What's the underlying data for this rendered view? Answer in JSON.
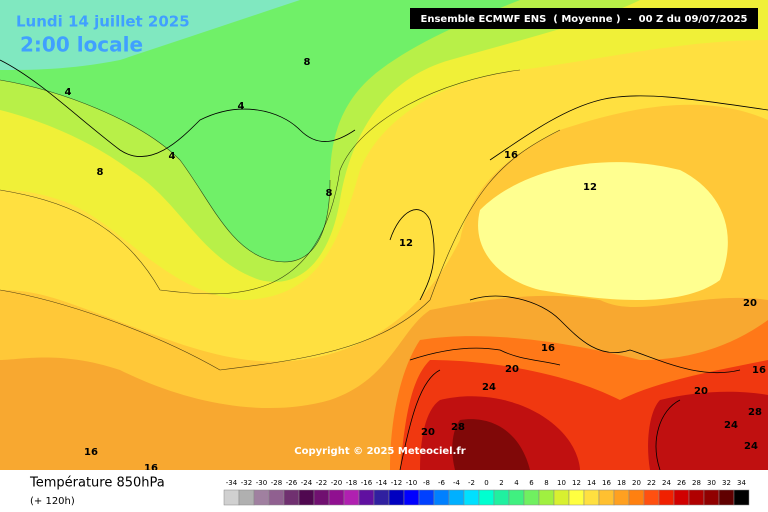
{
  "title": "Lundi 14 juillet 2025",
  "time": "2:00 locale",
  "header": "Ensemble ECMWF ENS  ( Moyenne )  -  00 Z du 09/07/2025",
  "copyright": "Copyright © 2025 Meteociel.fr",
  "parameter": "Température 850hPa",
  "lead": "(+ 120h)",
  "contour_labels": [
    4,
    4,
    4,
    8,
    8,
    8,
    12,
    12,
    16,
    16,
    16,
    16,
    16,
    20,
    20,
    20,
    20,
    24,
    24,
    24,
    28,
    28
  ],
  "scale": {
    "values": [
      -34,
      -32,
      -30,
      -28,
      -26,
      -24,
      -22,
      -20,
      -18,
      -16,
      -14,
      -12,
      -10,
      -8,
      -6,
      -4,
      -2,
      0,
      2,
      4,
      6,
      8,
      10,
      12,
      14,
      16,
      18,
      20,
      22,
      24,
      26,
      28,
      30,
      32,
      34
    ],
    "colors": [
      "#d0d0d0",
      "#b0b0b0",
      "#a080a0",
      "#906090",
      "#703070",
      "#500850",
      "#701070",
      "#901090",
      "#b020b0",
      "#6010a0",
      "#3020a0",
      "#0000c0",
      "#0000ff",
      "#0040ff",
      "#0080ff",
      "#00b0ff",
      "#00e0ff",
      "#00ffd0",
      "#20f0a0",
      "#40f080",
      "#70f060",
      "#a0f040",
      "#d8f030",
      "#ffff40",
      "#ffe040",
      "#ffc030",
      "#ffa020",
      "#ff8010",
      "#ff5010",
      "#f02000",
      "#d00000",
      "#b00000",
      "#900000",
      "#600000",
      "#000000"
    ]
  }
}
